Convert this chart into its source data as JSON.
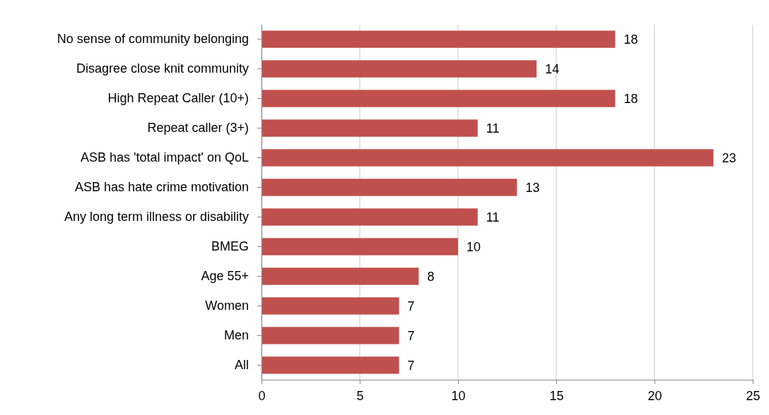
{
  "chart_data": {
    "type": "bar",
    "orientation": "horizontal",
    "categories": [
      "No sense of community belonging",
      "Disagree close knit community",
      "High Repeat Caller (10+)",
      "Repeat caller (3+)",
      "ASB has 'total impact' on QoL",
      "ASB has hate crime motivation",
      "Any long term illness or disability",
      "BMEG",
      "Age 55+",
      "Women",
      "Men",
      "All"
    ],
    "values": [
      18,
      14,
      18,
      11,
      23,
      13,
      11,
      10,
      8,
      7,
      7,
      7
    ],
    "color": "#c0504d",
    "xlim": [
      0,
      25
    ],
    "xticks": [
      0,
      5,
      10,
      15,
      20,
      25
    ],
    "grid": "x",
    "data_labels": true
  }
}
